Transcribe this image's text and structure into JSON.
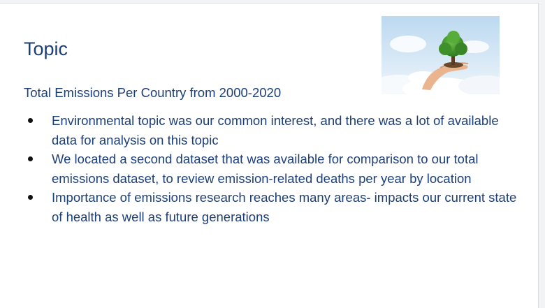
{
  "slide": {
    "title": "Topic",
    "subtitle": "Total Emissions Per Country from 2000-2020",
    "bullets": [
      {
        "text": "Environmental topic was our common interest, and there was a lot of available data for analysis on this topic"
      },
      {
        "text": "We located a second dataset that was available for comparison to our total emissions dataset, to review emission-related deaths per year by location"
      },
      {
        "text": "Importance of emissions research reaches many areas- impacts our current state of health as well as future generations"
      }
    ],
    "image": {
      "icon": "tree-in-hand-over-clouds-photo"
    }
  },
  "colors": {
    "text": "#1c3f7a",
    "bullet": "#111111",
    "sky": "#cfe3f4",
    "foliage": "#3f8f2a"
  }
}
